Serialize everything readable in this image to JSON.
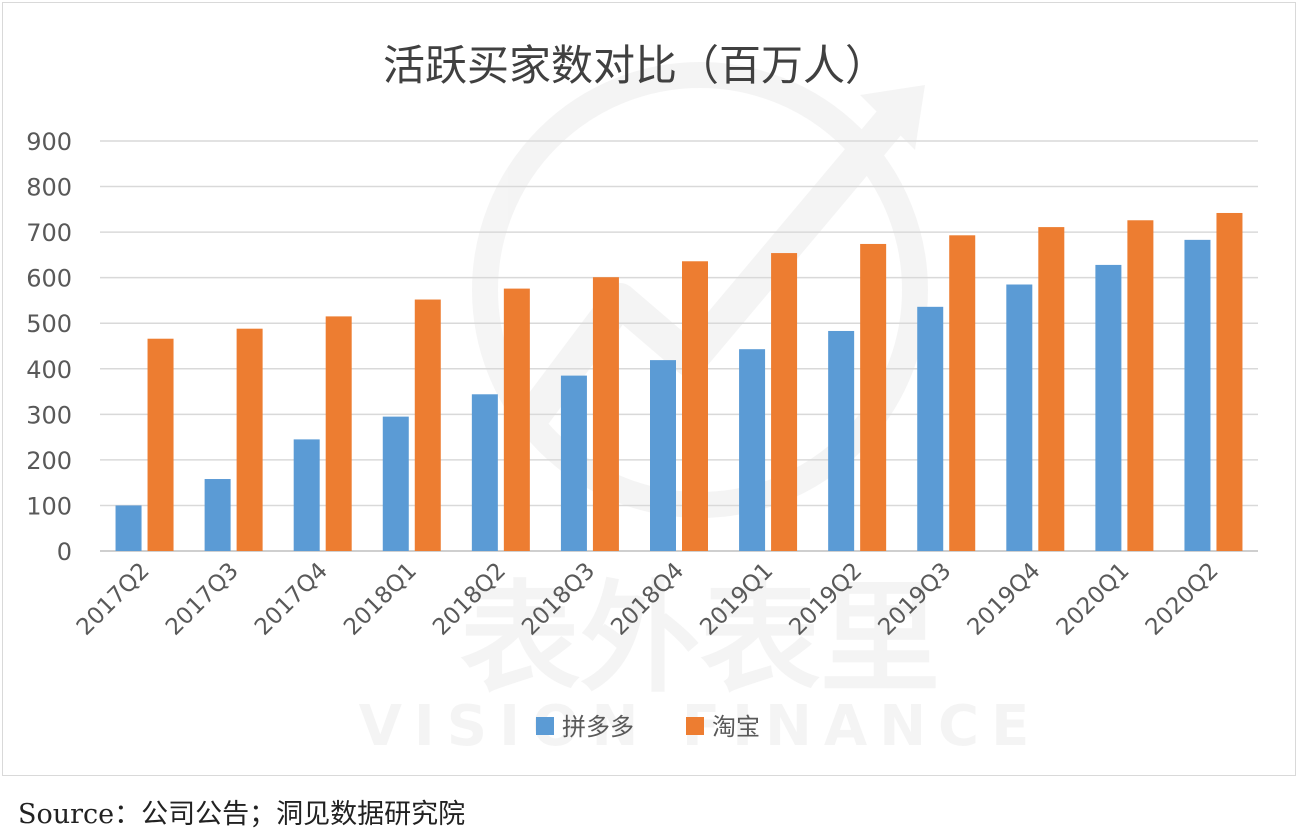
{
  "chart_data": {
    "type": "bar",
    "title": "活跃买家数对比（百万人）",
    "categories": [
      "2017Q2",
      "2017Q3",
      "2017Q4",
      "2018Q1",
      "2018Q2",
      "2018Q3",
      "2018Q4",
      "2019Q1",
      "2019Q2",
      "2019Q3",
      "2019Q4",
      "2020Q1",
      "2020Q2"
    ],
    "series": [
      {
        "name": "拼多多",
        "color": "#5b9bd5",
        "values": [
          100,
          158,
          245,
          295,
          344,
          385,
          419,
          443,
          483,
          536,
          585,
          628,
          683
        ]
      },
      {
        "name": "淘宝",
        "color": "#ed7d31",
        "values": [
          466,
          488,
          515,
          552,
          576,
          601,
          636,
          654,
          674,
          693,
          711,
          726,
          742
        ]
      }
    ],
    "ylim": [
      0,
      900
    ],
    "yticks": [
      0,
      100,
      200,
      300,
      400,
      500,
      600,
      700,
      800,
      900
    ],
    "grid": true,
    "legend_position": "bottom",
    "watermark": "表外表里 VISION FINANCE"
  },
  "source": "Source：公司公告；洞见数据研究院"
}
